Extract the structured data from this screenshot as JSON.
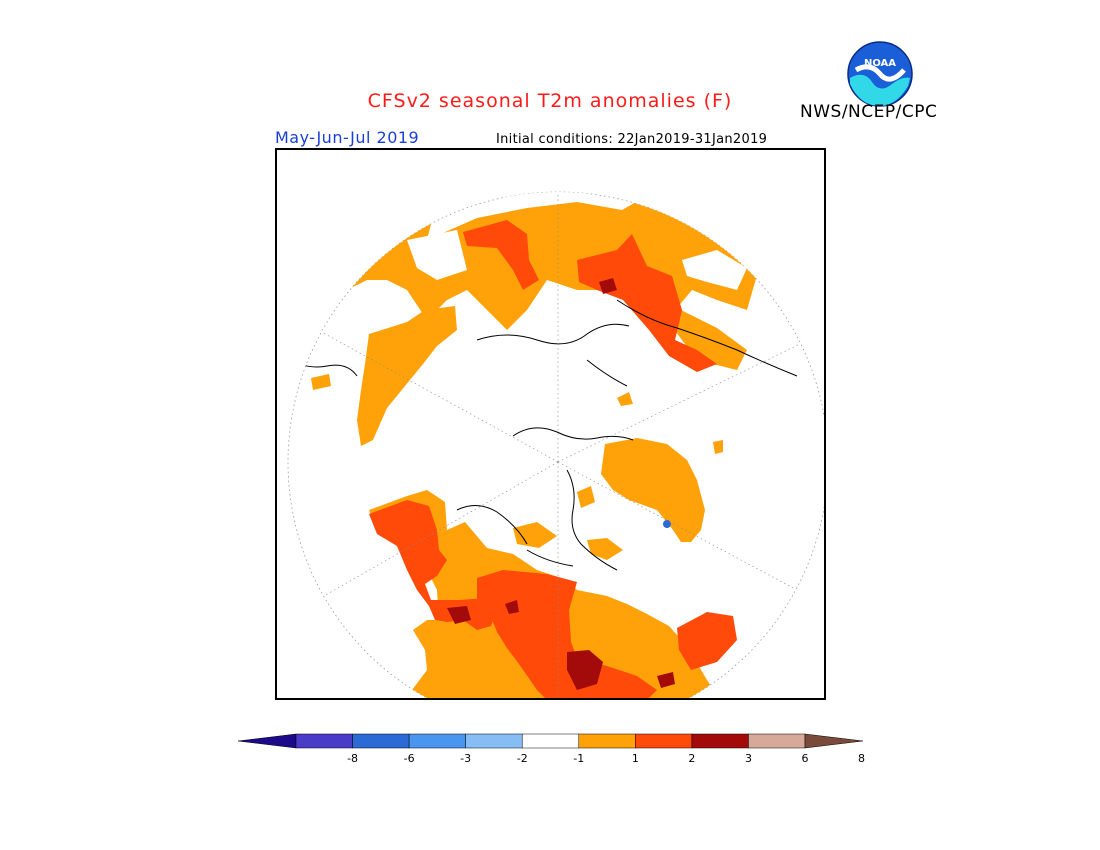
{
  "header": {
    "title": "CFSv2 seasonal T2m anomalies (F)",
    "title_color": "#ff1a1a",
    "agency": "NWS/NCEP/CPC",
    "logo_name": "noaa-logo"
  },
  "subheader": {
    "season": "May-Jun-Jul 2019",
    "season_color": "#1a3fd8",
    "initial_conditions": "Initial conditions: 22Jan2019-31Jan2019"
  },
  "map": {
    "projection": "north-polar-stereographic",
    "variable": "T2m anomaly"
  },
  "colorbar": {
    "ticks": [
      "-8",
      "-6",
      "-3",
      "-2",
      "-1",
      "1",
      "2",
      "3",
      "6",
      "8"
    ],
    "colors": [
      "#1c0a8a",
      "#4b3cc8",
      "#2c6bd6",
      "#4a95ee",
      "#86bdf5",
      "#ffffff",
      "#ffa20a",
      "#ff4a0a",
      "#a30a0a",
      "#d7a99a",
      "#7a4a3a"
    ],
    "anomaly_colors": {
      "1_to_2": "#ffa20a",
      "2_to_3": "#ff4a0a",
      "3_to_6": "#a30a0a",
      "-1_to_-2": "#4a95ee"
    }
  }
}
